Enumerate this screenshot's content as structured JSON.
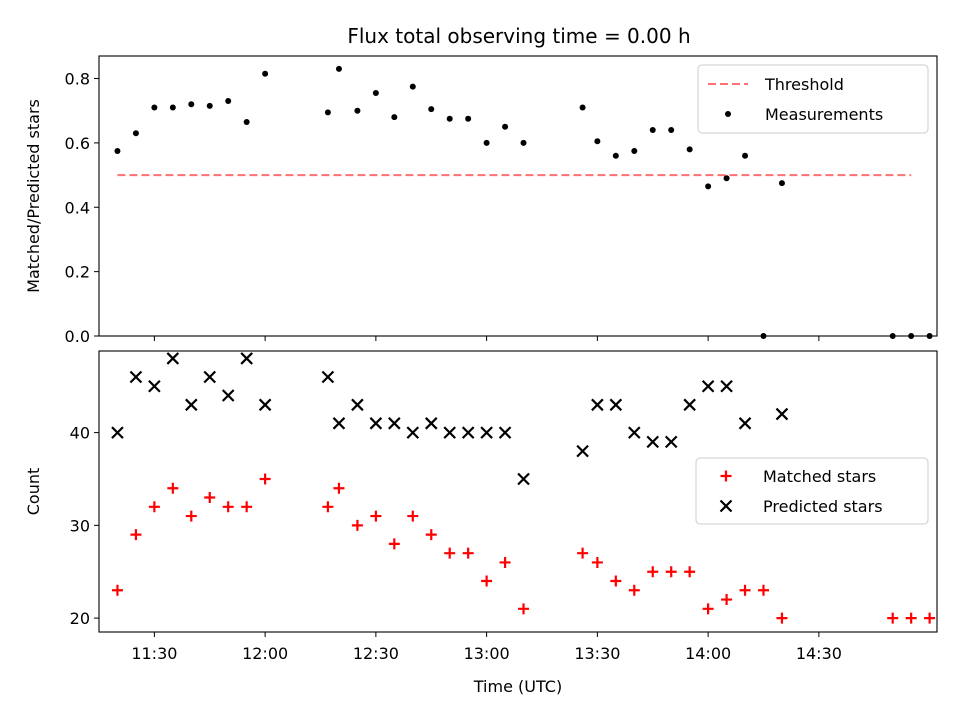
{
  "figure": {
    "title": "Flux total observing time = 0.00 h"
  },
  "chart_data": [
    {
      "type": "scatter",
      "ylabel": "Matched/Predicted stars",
      "xlabel": "",
      "xlim": [
        "11:15",
        "15:02"
      ],
      "ylim": [
        0,
        0.87
      ],
      "yticks": [
        "0.0",
        "0.2",
        "0.4",
        "0.6",
        "0.8"
      ],
      "ytick_values": [
        0,
        0.2,
        0.4,
        0.6,
        0.8
      ],
      "xtick_values": [
        "11:30",
        "12:00",
        "12:30",
        "13:00",
        "13:30",
        "14:00",
        "14:30"
      ],
      "legend_position": "top-right",
      "threshold": {
        "name": "Threshold",
        "y": 0.5,
        "x": [
          "11:20",
          "14:55"
        ],
        "color": "#ff7070",
        "style": "dashed"
      },
      "series": [
        {
          "name": "Measurements",
          "color": "#000000",
          "marker": "dot",
          "x": [
            "11:20",
            "11:25",
            "11:30",
            "11:35",
            "11:40",
            "11:45",
            "11:50",
            "11:55",
            "12:00",
            "12:17",
            "12:20",
            "12:25",
            "12:30",
            "12:35",
            "12:40",
            "12:45",
            "12:50",
            "12:55",
            "13:00",
            "13:05",
            "13:10",
            "13:26",
            "13:30",
            "13:35",
            "13:40",
            "13:45",
            "13:50",
            "13:55",
            "14:00",
            "14:05",
            "14:10",
            "14:15",
            "14:20",
            "14:50",
            "14:55",
            "15:00"
          ],
          "y": [
            0.575,
            0.63,
            0.71,
            0.71,
            0.72,
            0.715,
            0.73,
            0.665,
            0.815,
            0.695,
            0.83,
            0.7,
            0.755,
            0.68,
            0.775,
            0.705,
            0.675,
            0.675,
            0.6,
            0.65,
            0.6,
            0.71,
            0.605,
            0.56,
            0.575,
            0.64,
            0.64,
            0.58,
            0.465,
            0.49,
            0.56,
            0.0,
            0.475,
            0.0,
            0.0,
            0.0
          ]
        }
      ]
    },
    {
      "type": "scatter",
      "ylabel": "Count",
      "xlabel": "Time (UTC)",
      "xlim": [
        "11:15",
        "15:02"
      ],
      "ylim": [
        18.5,
        48.8
      ],
      "yticks": [
        "20",
        "30",
        "40"
      ],
      "ytick_values": [
        20,
        30,
        40
      ],
      "xticks": [
        "11:30",
        "12:00",
        "12:30",
        "13:00",
        "13:30",
        "14:00",
        "14:30"
      ],
      "legend_position": "center-right",
      "series": [
        {
          "name": "Matched stars",
          "color": "#ff0000",
          "marker": "plus",
          "x": [
            "11:20",
            "11:25",
            "11:30",
            "11:35",
            "11:40",
            "11:45",
            "11:50",
            "11:55",
            "12:00",
            "12:17",
            "12:20",
            "12:25",
            "12:30",
            "12:35",
            "12:40",
            "12:45",
            "12:50",
            "12:55",
            "13:00",
            "13:05",
            "13:10",
            "13:26",
            "13:30",
            "13:35",
            "13:40",
            "13:45",
            "13:50",
            "13:55",
            "14:00",
            "14:05",
            "14:10",
            "14:15",
            "14:20",
            "14:50",
            "14:55",
            "15:00"
          ],
          "y": [
            23,
            29,
            32,
            34,
            31,
            33,
            32,
            32,
            35,
            32,
            34,
            30,
            31,
            28,
            31,
            29,
            27,
            27,
            24,
            26,
            21,
            27,
            26,
            24,
            23,
            25,
            25,
            25,
            21,
            22,
            23,
            23,
            20,
            20,
            20,
            20
          ]
        },
        {
          "name": "Predicted stars",
          "color": "#000000",
          "marker": "x",
          "x": [
            "11:20",
            "11:25",
            "11:30",
            "11:35",
            "11:40",
            "11:45",
            "11:50",
            "11:55",
            "12:00",
            "12:17",
            "12:20",
            "12:25",
            "12:30",
            "12:35",
            "12:40",
            "12:45",
            "12:50",
            "12:55",
            "13:00",
            "13:05",
            "13:10",
            "13:26",
            "13:30",
            "13:35",
            "13:40",
            "13:45",
            "13:50",
            "13:55",
            "14:00",
            "14:05",
            "14:10",
            "14:20"
          ],
          "y": [
            40,
            46,
            45,
            48,
            43,
            46,
            44,
            48,
            43,
            46,
            41,
            43,
            41,
            41,
            40,
            41,
            40,
            40,
            40,
            40,
            35,
            38,
            43,
            43,
            40,
            39,
            39,
            43,
            45,
            45,
            41,
            42
          ]
        }
      ]
    }
  ]
}
